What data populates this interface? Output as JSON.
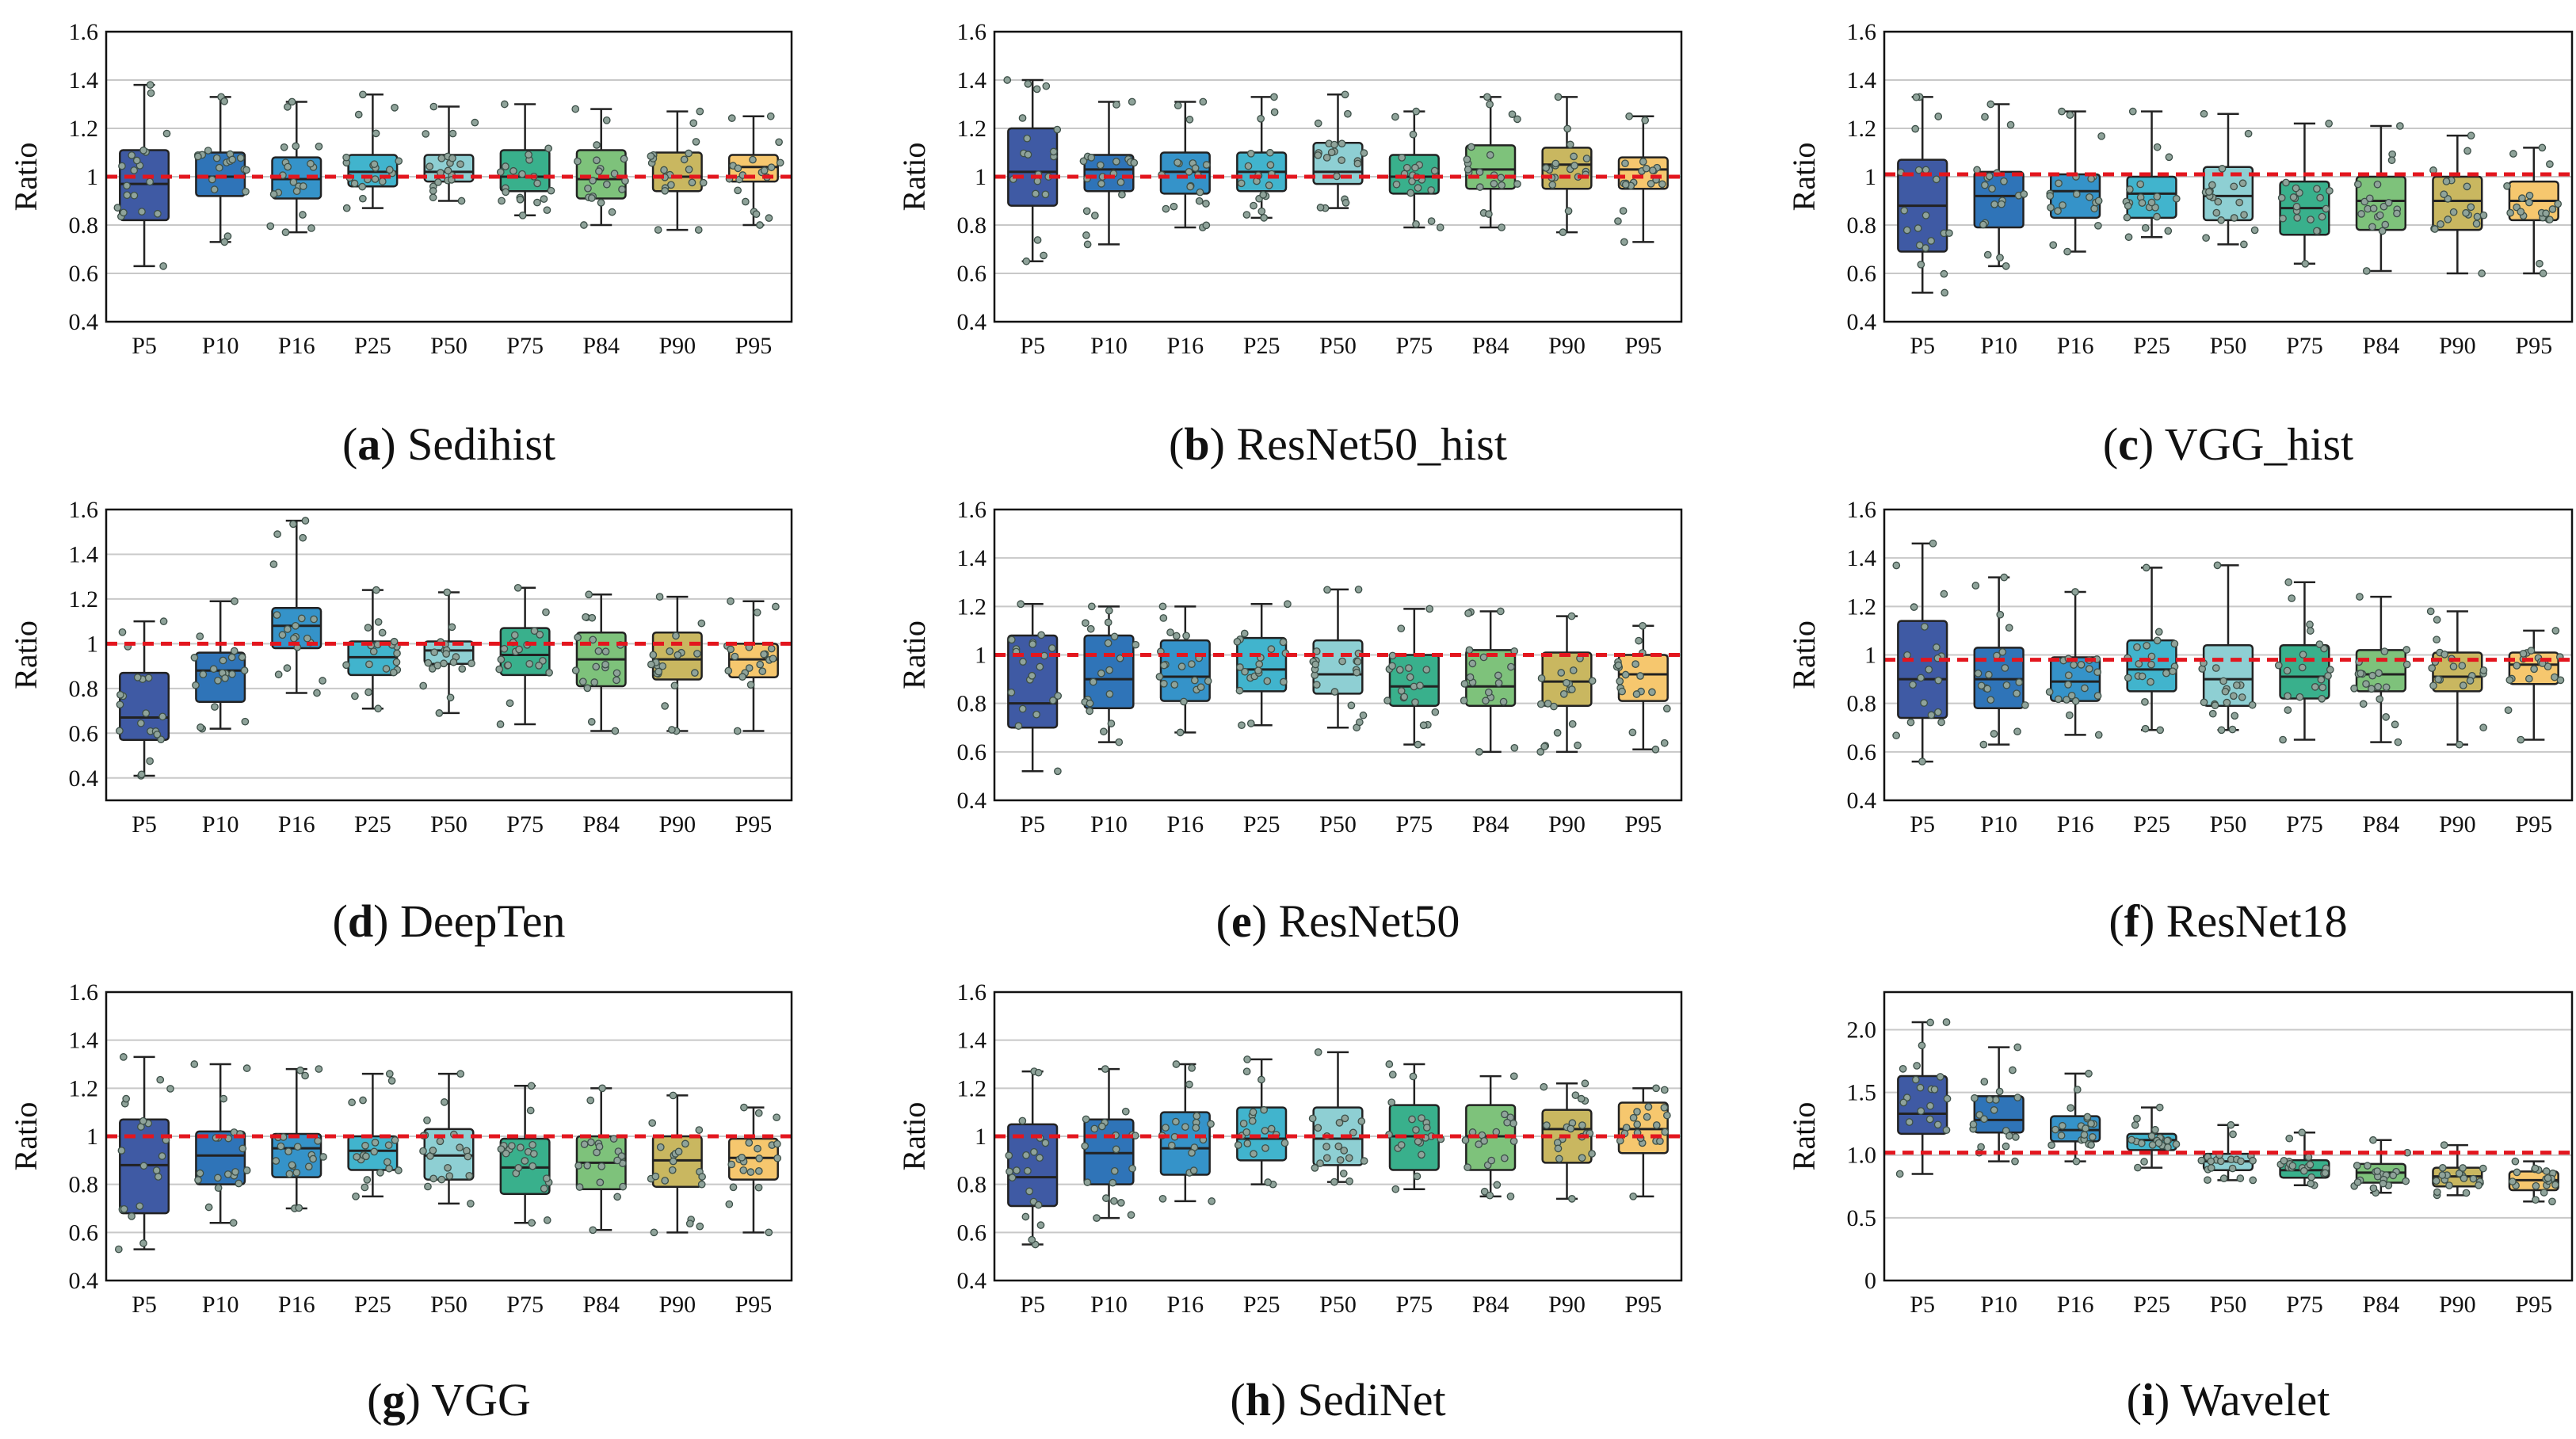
{
  "colors": {
    "boxes": [
      "#3f5aa4",
      "#2f74b8",
      "#3593c9",
      "#41b4cd",
      "#8ecfd3",
      "#39b08c",
      "#7ec27b",
      "#c9b760",
      "#f6c76e"
    ],
    "reference_line": "#e3161e",
    "grid": "#c8c8c8",
    "jitter_point_fill": "#8fa39a",
    "jitter_point_edge": "#3d4f48"
  },
  "chart_data": [
    {
      "type": "box",
      "letter": "a",
      "name": "Sedihist",
      "ylabel": "Ratio",
      "ylim": [
        0.4,
        1.6
      ],
      "yticks": [
        0.4,
        0.6,
        0.8,
        1,
        1.2,
        1.4,
        1.6
      ],
      "ytick_labels": [
        "0.4",
        "0.6",
        "0.8",
        "1",
        "1.2",
        "1.4",
        "1.6"
      ],
      "categories": [
        "P5",
        "P10",
        "P16",
        "P25",
        "P50",
        "P75",
        "P84",
        "P90",
        "P95"
      ],
      "reference": 1,
      "boxes": [
        {
          "min": 0.63,
          "q1": 0.82,
          "median": 0.97,
          "q3": 1.11,
          "max": 1.38
        },
        {
          "min": 0.73,
          "q1": 0.92,
          "median": 1.0,
          "q3": 1.1,
          "max": 1.33
        },
        {
          "min": 0.77,
          "q1": 0.91,
          "median": 0.99,
          "q3": 1.08,
          "max": 1.31
        },
        {
          "min": 0.87,
          "q1": 0.96,
          "median": 1.02,
          "q3": 1.09,
          "max": 1.34
        },
        {
          "min": 0.9,
          "q1": 0.98,
          "median": 1.02,
          "q3": 1.09,
          "max": 1.29
        },
        {
          "min": 0.84,
          "q1": 0.94,
          "median": 1.0,
          "q3": 1.11,
          "max": 1.3
        },
        {
          "min": 0.8,
          "q1": 0.91,
          "median": 0.99,
          "q3": 1.11,
          "max": 1.28
        },
        {
          "min": 0.78,
          "q1": 0.94,
          "median": 1.0,
          "q3": 1.1,
          "max": 1.27
        },
        {
          "min": 0.8,
          "q1": 0.98,
          "median": 1.04,
          "q3": 1.09,
          "max": 1.25
        }
      ]
    },
    {
      "type": "box",
      "letter": "b",
      "name": "ResNet50_hist",
      "ylabel": "Ratio",
      "ylim": [
        0.4,
        1.6
      ],
      "yticks": [
        0.4,
        0.6,
        0.8,
        1,
        1.2,
        1.4,
        1.6
      ],
      "ytick_labels": [
        "0.4",
        "0.6",
        "0.8",
        "1",
        "1.2",
        "1.4",
        "1.6"
      ],
      "categories": [
        "P5",
        "P10",
        "P16",
        "P25",
        "P50",
        "P75",
        "P84",
        "P90",
        "P95"
      ],
      "reference": 1,
      "boxes": [
        {
          "min": 0.65,
          "q1": 0.88,
          "median": 1.02,
          "q3": 1.2,
          "max": 1.4
        },
        {
          "min": 0.72,
          "q1": 0.94,
          "median": 1.03,
          "q3": 1.09,
          "max": 1.31
        },
        {
          "min": 0.79,
          "q1": 0.93,
          "median": 1.02,
          "q3": 1.1,
          "max": 1.31
        },
        {
          "min": 0.83,
          "q1": 0.94,
          "median": 1.02,
          "q3": 1.1,
          "max": 1.33
        },
        {
          "min": 0.87,
          "q1": 0.97,
          "median": 1.02,
          "q3": 1.14,
          "max": 1.34
        },
        {
          "min": 0.79,
          "q1": 0.93,
          "median": 1.0,
          "q3": 1.09,
          "max": 1.27
        },
        {
          "min": 0.79,
          "q1": 0.95,
          "median": 1.03,
          "q3": 1.13,
          "max": 1.33
        },
        {
          "min": 0.77,
          "q1": 0.95,
          "median": 1.05,
          "q3": 1.12,
          "max": 1.33
        },
        {
          "min": 0.73,
          "q1": 0.95,
          "median": 1.03,
          "q3": 1.08,
          "max": 1.25
        }
      ]
    },
    {
      "type": "box",
      "letter": "c",
      "name": "VGG_hist",
      "ylabel": "Ratio",
      "ylim": [
        0.4,
        1.6
      ],
      "yticks": [
        0.4,
        0.6,
        0.8,
        1,
        1.2,
        1.4,
        1.6
      ],
      "ytick_labels": [
        "0.4",
        "0.6",
        "0.8",
        "1",
        "1.2",
        "1.4",
        "1.6"
      ],
      "categories": [
        "P5",
        "P10",
        "P16",
        "P25",
        "P50",
        "P75",
        "P84",
        "P90",
        "P95"
      ],
      "reference": 1.01,
      "boxes": [
        {
          "min": 0.52,
          "q1": 0.69,
          "median": 0.88,
          "q3": 1.07,
          "max": 1.33
        },
        {
          "min": 0.63,
          "q1": 0.79,
          "median": 0.92,
          "q3": 1.02,
          "max": 1.3
        },
        {
          "min": 0.69,
          "q1": 0.83,
          "median": 0.94,
          "q3": 1.01,
          "max": 1.27
        },
        {
          "min": 0.75,
          "q1": 0.83,
          "median": 0.93,
          "q3": 1.0,
          "max": 1.27
        },
        {
          "min": 0.72,
          "q1": 0.82,
          "median": 0.92,
          "q3": 1.04,
          "max": 1.26
        },
        {
          "min": 0.64,
          "q1": 0.76,
          "median": 0.87,
          "q3": 0.98,
          "max": 1.22
        },
        {
          "min": 0.61,
          "q1": 0.78,
          "median": 0.9,
          "q3": 1.0,
          "max": 1.21
        },
        {
          "min": 0.6,
          "q1": 0.78,
          "median": 0.9,
          "q3": 1.0,
          "max": 1.17
        },
        {
          "min": 0.6,
          "q1": 0.82,
          "median": 0.9,
          "q3": 0.98,
          "max": 1.12
        }
      ]
    },
    {
      "type": "box",
      "letter": "d",
      "name": "DeepTen",
      "ylabel": "Ratio",
      "ylim": [
        0.3,
        1.6
      ],
      "yticks": [
        0.4,
        0.6,
        0.8,
        1,
        1.2,
        1.4,
        1.6
      ],
      "ytick_labels": [
        "0.4",
        "0.6",
        "0.8",
        "1",
        "1.2",
        "1.4",
        "1.6"
      ],
      "categories": [
        "P5",
        "P10",
        "P16",
        "P25",
        "P50",
        "P75",
        "P84",
        "P90",
        "P95"
      ],
      "reference": 1,
      "boxes": [
        {
          "min": 0.41,
          "q1": 0.57,
          "median": 0.67,
          "q3": 0.87,
          "max": 1.1
        },
        {
          "min": 0.62,
          "q1": 0.74,
          "median": 0.88,
          "q3": 0.96,
          "max": 1.19
        },
        {
          "min": 0.78,
          "q1": 0.98,
          "median": 1.08,
          "q3": 1.16,
          "max": 1.55
        },
        {
          "min": 0.71,
          "q1": 0.86,
          "median": 0.94,
          "q3": 1.01,
          "max": 1.24
        },
        {
          "min": 0.69,
          "q1": 0.91,
          "median": 0.97,
          "q3": 1.01,
          "max": 1.23
        },
        {
          "min": 0.64,
          "q1": 0.86,
          "median": 0.95,
          "q3": 1.07,
          "max": 1.25
        },
        {
          "min": 0.61,
          "q1": 0.81,
          "median": 0.93,
          "q3": 1.05,
          "max": 1.22
        },
        {
          "min": 0.61,
          "q1": 0.84,
          "median": 0.93,
          "q3": 1.05,
          "max": 1.21
        },
        {
          "min": 0.61,
          "q1": 0.85,
          "median": 0.93,
          "q3": 1.0,
          "max": 1.19
        }
      ]
    },
    {
      "type": "box",
      "letter": "e",
      "name": "ResNet50",
      "ylabel": "Ratio",
      "ylim": [
        0.4,
        1.6
      ],
      "yticks": [
        0.4,
        0.6,
        0.8,
        1,
        1.2,
        1.4,
        1.6
      ],
      "ytick_labels": [
        "0.4",
        "0.6",
        "0.8",
        "1",
        "1.2",
        "1.4",
        "1.6"
      ],
      "categories": [
        "P5",
        "P10",
        "P16",
        "P25",
        "P50",
        "P75",
        "P84",
        "P90",
        "P95"
      ],
      "reference": 1,
      "boxes": [
        {
          "min": 0.52,
          "q1": 0.7,
          "median": 0.8,
          "q3": 1.08,
          "max": 1.21
        },
        {
          "min": 0.64,
          "q1": 0.78,
          "median": 0.9,
          "q3": 1.08,
          "max": 1.2
        },
        {
          "min": 0.68,
          "q1": 0.81,
          "median": 0.91,
          "q3": 1.06,
          "max": 1.2
        },
        {
          "min": 0.71,
          "q1": 0.85,
          "median": 0.94,
          "q3": 1.07,
          "max": 1.21
        },
        {
          "min": 0.7,
          "q1": 0.84,
          "median": 0.92,
          "q3": 1.06,
          "max": 1.27
        },
        {
          "min": 0.63,
          "q1": 0.79,
          "median": 0.87,
          "q3": 1.0,
          "max": 1.19
        },
        {
          "min": 0.6,
          "q1": 0.79,
          "median": 0.87,
          "q3": 1.02,
          "max": 1.18
        },
        {
          "min": 0.6,
          "q1": 0.79,
          "median": 0.89,
          "q3": 1.01,
          "max": 1.16
        },
        {
          "min": 0.61,
          "q1": 0.81,
          "median": 0.92,
          "q3": 1.0,
          "max": 1.12
        }
      ]
    },
    {
      "type": "box",
      "letter": "f",
      "name": "ResNet18",
      "ylabel": "Ratio",
      "ylim": [
        0.4,
        1.6
      ],
      "yticks": [
        0.4,
        0.6,
        0.8,
        1,
        1.2,
        1.4,
        1.6
      ],
      "ytick_labels": [
        "0.4",
        "0.6",
        "0.8",
        "1",
        "1.2",
        "1.4",
        "1.6"
      ],
      "categories": [
        "P5",
        "P10",
        "P16",
        "P25",
        "P50",
        "P75",
        "P84",
        "P90",
        "P95"
      ],
      "reference": 0.98,
      "boxes": [
        {
          "min": 0.56,
          "q1": 0.74,
          "median": 0.9,
          "q3": 1.14,
          "max": 1.46
        },
        {
          "min": 0.63,
          "q1": 0.78,
          "median": 0.9,
          "q3": 1.03,
          "max": 1.32
        },
        {
          "min": 0.67,
          "q1": 0.81,
          "median": 0.89,
          "q3": 0.99,
          "max": 1.26
        },
        {
          "min": 0.69,
          "q1": 0.85,
          "median": 0.94,
          "q3": 1.06,
          "max": 1.36
        },
        {
          "min": 0.69,
          "q1": 0.79,
          "median": 0.9,
          "q3": 1.04,
          "max": 1.37
        },
        {
          "min": 0.65,
          "q1": 0.82,
          "median": 0.91,
          "q3": 1.04,
          "max": 1.3
        },
        {
          "min": 0.64,
          "q1": 0.85,
          "median": 0.92,
          "q3": 1.02,
          "max": 1.24
        },
        {
          "min": 0.63,
          "q1": 0.85,
          "median": 0.91,
          "q3": 1.01,
          "max": 1.18
        },
        {
          "min": 0.65,
          "q1": 0.88,
          "median": 0.96,
          "q3": 1.01,
          "max": 1.1
        }
      ]
    },
    {
      "type": "box",
      "letter": "g",
      "name": "VGG",
      "ylabel": "Ratio",
      "ylim": [
        0.4,
        1.6
      ],
      "yticks": [
        0.4,
        0.6,
        0.8,
        1,
        1.2,
        1.4,
        1.6
      ],
      "ytick_labels": [
        "0.4",
        "0.6",
        "0.8",
        "1",
        "1.2",
        "1.4",
        "1.6"
      ],
      "categories": [
        "P5",
        "P10",
        "P16",
        "P25",
        "P50",
        "P75",
        "P84",
        "P90",
        "P95"
      ],
      "reference": 1,
      "boxes": [
        {
          "min": 0.53,
          "q1": 0.68,
          "median": 0.88,
          "q3": 1.07,
          "max": 1.33
        },
        {
          "min": 0.64,
          "q1": 0.8,
          "median": 0.92,
          "q3": 1.02,
          "max": 1.3
        },
        {
          "min": 0.7,
          "q1": 0.83,
          "median": 0.95,
          "q3": 1.01,
          "max": 1.28
        },
        {
          "min": 0.75,
          "q1": 0.86,
          "median": 0.94,
          "q3": 1.0,
          "max": 1.26
        },
        {
          "min": 0.72,
          "q1": 0.82,
          "median": 0.92,
          "q3": 1.03,
          "max": 1.26
        },
        {
          "min": 0.64,
          "q1": 0.76,
          "median": 0.87,
          "q3": 0.99,
          "max": 1.21
        },
        {
          "min": 0.61,
          "q1": 0.78,
          "median": 0.89,
          "q3": 1.0,
          "max": 1.2
        },
        {
          "min": 0.6,
          "q1": 0.79,
          "median": 0.9,
          "q3": 1.0,
          "max": 1.17
        },
        {
          "min": 0.6,
          "q1": 0.82,
          "median": 0.91,
          "q3": 0.99,
          "max": 1.12
        }
      ]
    },
    {
      "type": "box",
      "letter": "h",
      "name": "SediNet",
      "ylabel": "Ratio",
      "ylim": [
        0.4,
        1.6
      ],
      "yticks": [
        0.4,
        0.6,
        0.8,
        1,
        1.2,
        1.4,
        1.6
      ],
      "ytick_labels": [
        "0.4",
        "0.6",
        "0.8",
        "1",
        "1.2",
        "1.4",
        "1.6"
      ],
      "categories": [
        "P5",
        "P10",
        "P16",
        "P25",
        "P50",
        "P75",
        "P84",
        "P90",
        "P95"
      ],
      "reference": 1,
      "boxes": [
        {
          "min": 0.55,
          "q1": 0.71,
          "median": 0.83,
          "q3": 1.05,
          "max": 1.27
        },
        {
          "min": 0.66,
          "q1": 0.8,
          "median": 0.93,
          "q3": 1.07,
          "max": 1.28
        },
        {
          "min": 0.73,
          "q1": 0.84,
          "median": 0.95,
          "q3": 1.1,
          "max": 1.3
        },
        {
          "min": 0.8,
          "q1": 0.9,
          "median": 0.99,
          "q3": 1.12,
          "max": 1.32
        },
        {
          "min": 0.81,
          "q1": 0.88,
          "median": 0.99,
          "q3": 1.12,
          "max": 1.35
        },
        {
          "min": 0.78,
          "q1": 0.86,
          "median": 1.0,
          "q3": 1.13,
          "max": 1.3
        },
        {
          "min": 0.75,
          "q1": 0.86,
          "median": 1.0,
          "q3": 1.13,
          "max": 1.25
        },
        {
          "min": 0.74,
          "q1": 0.89,
          "median": 1.03,
          "q3": 1.11,
          "max": 1.22
        },
        {
          "min": 0.75,
          "q1": 0.93,
          "median": 1.03,
          "q3": 1.14,
          "max": 1.2
        }
      ]
    },
    {
      "type": "box",
      "letter": "i",
      "name": "Wavelet",
      "ylabel": "Ratio",
      "ylim": [
        0,
        2.3
      ],
      "yticks": [
        0,
        0.5,
        1.0,
        1.5,
        2.0
      ],
      "ytick_labels": [
        "0",
        "0.5",
        "1.0",
        "1.5",
        "2.0"
      ],
      "categories": [
        "P5",
        "P10",
        "P16",
        "P25",
        "P50",
        "P75",
        "P84",
        "P90",
        "P95"
      ],
      "reference": 1.02,
      "boxes": [
        {
          "min": 0.85,
          "q1": 1.17,
          "median": 1.33,
          "q3": 1.63,
          "max": 2.06
        },
        {
          "min": 0.95,
          "q1": 1.18,
          "median": 1.28,
          "q3": 1.47,
          "max": 1.86
        },
        {
          "min": 0.95,
          "q1": 1.11,
          "median": 1.2,
          "q3": 1.31,
          "max": 1.65
        },
        {
          "min": 0.9,
          "q1": 1.04,
          "median": 1.12,
          "q3": 1.17,
          "max": 1.38
        },
        {
          "min": 0.8,
          "q1": 0.88,
          "median": 0.95,
          "q3": 1.01,
          "max": 1.24
        },
        {
          "min": 0.76,
          "q1": 0.82,
          "median": 0.88,
          "q3": 0.96,
          "max": 1.18
        },
        {
          "min": 0.7,
          "q1": 0.78,
          "median": 0.86,
          "q3": 0.93,
          "max": 1.12
        },
        {
          "min": 0.68,
          "q1": 0.75,
          "median": 0.83,
          "q3": 0.9,
          "max": 1.08
        },
        {
          "min": 0.63,
          "q1": 0.72,
          "median": 0.8,
          "q3": 0.87,
          "max": 0.95
        }
      ]
    }
  ]
}
